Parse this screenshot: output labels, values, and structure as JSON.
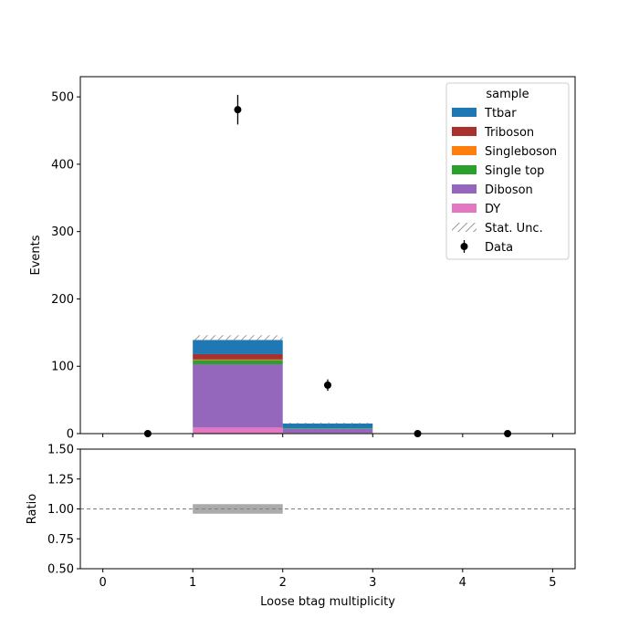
{
  "chart_data": [
    {
      "type": "bar",
      "stacked": true,
      "panel": "main",
      "bin_edges": [
        0,
        1,
        2,
        3,
        4,
        5
      ],
      "xlim": [
        -0.25,
        5.25
      ],
      "ylim": [
        0,
        530
      ],
      "ylabel": "Events",
      "xticks": [
        "0",
        "1",
        "2",
        "3",
        "4",
        "5"
      ],
      "yticks": [
        {
          "value": 0,
          "label": "0"
        },
        {
          "value": 100,
          "label": "100"
        },
        {
          "value": 200,
          "label": "200"
        },
        {
          "value": 300,
          "label": "300"
        },
        {
          "value": 400,
          "label": "400"
        },
        {
          "value": 500,
          "label": "500"
        }
      ],
      "legend": {
        "title": "sample",
        "placement": "top-right"
      },
      "series": [
        {
          "name": "DY",
          "color": "#e377c2",
          "values": [
            0,
            9,
            1,
            0,
            0
          ]
        },
        {
          "name": "Diboson",
          "color": "#9467bd",
          "values": [
            0,
            94,
            6,
            0,
            0
          ]
        },
        {
          "name": "Single top",
          "color": "#2ca02c",
          "values": [
            0,
            6,
            1,
            0,
            0
          ]
        },
        {
          "name": "Singleboson",
          "color": "#ff7f0e",
          "values": [
            0,
            1,
            0,
            0,
            0
          ]
        },
        {
          "name": "Triboson",
          "color": "#a8312f",
          "values": [
            0,
            8,
            0,
            0,
            0
          ]
        },
        {
          "name": "Ttbar",
          "color": "#1f77b4",
          "values": [
            0,
            21,
            7,
            0,
            0
          ]
        }
      ],
      "stat_unc": {
        "name": "Stat. Unc.",
        "lower": [
          0,
          138,
          14,
          0,
          0
        ],
        "upper": [
          0,
          146,
          16,
          0,
          0
        ]
      },
      "data_points": {
        "name": "Data",
        "x": [
          0.5,
          1.5,
          2.5,
          3.5,
          4.5
        ],
        "y": [
          0,
          481,
          72,
          0,
          0
        ],
        "yerr": [
          0,
          22,
          8.5,
          0,
          0
        ]
      }
    },
    {
      "type": "bar",
      "panel": "ratio",
      "xlabel": "Loose btag multiplicity",
      "ylabel": "Ratio",
      "xlim": [
        -0.25,
        5.25
      ],
      "ylim": [
        0.5,
        1.5
      ],
      "xticks": [
        "0",
        "1",
        "2",
        "3",
        "4",
        "5"
      ],
      "yticks": [
        {
          "value": 0.5,
          "label": "0.50"
        },
        {
          "value": 0.75,
          "label": "0.75"
        },
        {
          "value": 1.0,
          "label": "1.00"
        },
        {
          "value": 1.25,
          "label": "1.25"
        },
        {
          "value": 1.5,
          "label": "1.50"
        }
      ],
      "reference_line": 1.0,
      "unc_band": [
        {
          "x0": 1,
          "x1": 2,
          "low": 0.96,
          "high": 1.04
        }
      ]
    }
  ]
}
